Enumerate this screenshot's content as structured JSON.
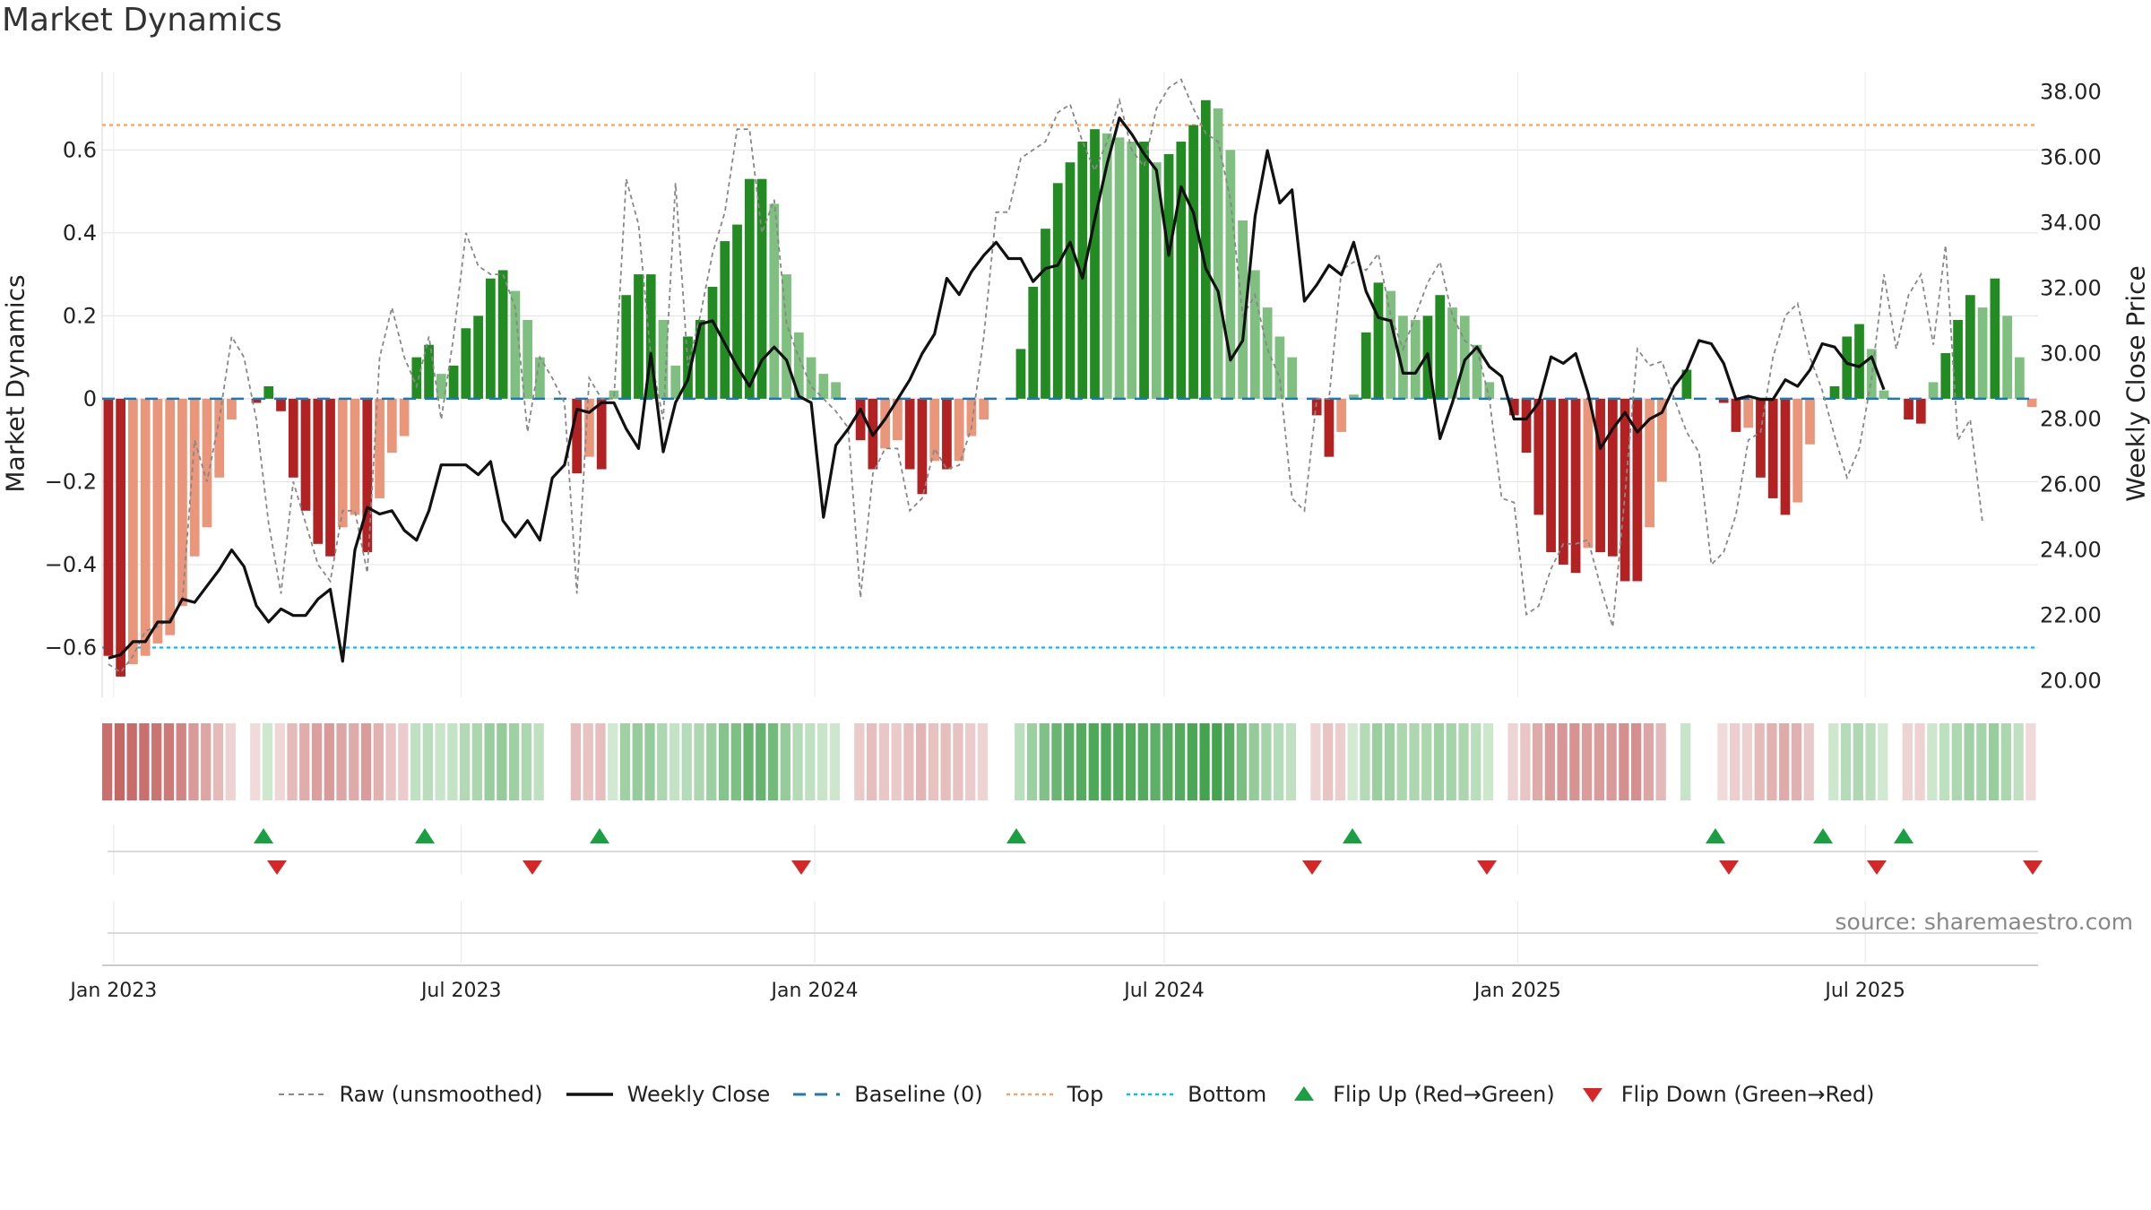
{
  "chart_data": {
    "type": "bar",
    "title": "Market Dynamics",
    "ylabel": "Market Dynamics",
    "ylabel_right": "Weekly Close Price",
    "ylim": [
      -0.72,
      0.78
    ],
    "ylim_right": [
      19.5,
      38.5
    ],
    "yticks": [
      0.6,
      0.4,
      0.2,
      0,
      -0.2,
      -0.4,
      -0.6
    ],
    "ytick_labels": [
      "0.6",
      "0.4",
      "0.2",
      "0",
      "−0.2",
      "−0.4",
      "−0.6"
    ],
    "yticks_right": [
      38,
      36,
      34,
      32,
      30,
      28,
      26,
      24,
      22,
      20
    ],
    "ytick_labels_right": [
      "38.00",
      "36.00",
      "34.00",
      "32.00",
      "30.00",
      "28.00",
      "26.00",
      "24.00",
      "22.00",
      "20.00"
    ],
    "x_start": "2022-12-26",
    "x_end": "2025-09-29",
    "xticks": [
      {
        "label": "Jan 2023",
        "date": "2023-01-01"
      },
      {
        "label": "Jul 2023",
        "date": "2023-07-01"
      },
      {
        "label": "Jan 2024",
        "date": "2024-01-01"
      },
      {
        "label": "Jul 2024",
        "date": "2024-07-01"
      },
      {
        "label": "Jan 2025",
        "date": "2025-01-01"
      },
      {
        "label": "Jul 2025",
        "date": "2025-07-01"
      }
    ],
    "top_line": 0.66,
    "bottom_line": -0.6,
    "baseline": 0,
    "grid": true,
    "legend_position": "bottom",
    "colors": {
      "strong_red": "#b22222",
      "light_red": "#e9967a",
      "strong_green": "#228b22",
      "light_green": "#7fbf7f",
      "raw": "#888888",
      "close": "#111111",
      "baseline": "#1f77b4",
      "top": "#f4a460",
      "bottom": "#00bfff",
      "flip_up": "#1aa043",
      "flip_down": "#d62728"
    },
    "series": [
      {
        "name": "Market Dynamics",
        "values": [
          -0.62,
          -0.67,
          -0.64,
          -0.62,
          -0.59,
          -0.57,
          -0.5,
          -0.38,
          -0.31,
          -0.19,
          -0.05,
          0,
          -0.01,
          0.03,
          -0.03,
          -0.19,
          -0.27,
          -0.35,
          -0.38,
          -0.31,
          -0.28,
          -0.37,
          -0.24,
          -0.13,
          -0.09,
          0.1,
          0.13,
          0.06,
          0.08,
          0.17,
          0.2,
          0.29,
          0.31,
          0.26,
          0.19,
          0.1,
          0,
          0,
          -0.18,
          -0.14,
          -0.17,
          0.02,
          0.25,
          0.3,
          0.3,
          0.19,
          0.08,
          0.15,
          0.19,
          0.27,
          0.38,
          0.42,
          0.53,
          0.53,
          0.47,
          0.3,
          0.16,
          0.1,
          0.06,
          0.04,
          0,
          -0.1,
          -0.17,
          -0.12,
          -0.1,
          -0.17,
          -0.23,
          -0.15,
          -0.17,
          -0.15,
          -0.09,
          -0.05,
          0,
          0,
          0.12,
          0.27,
          0.41,
          0.52,
          0.57,
          0.62,
          0.65,
          0.64,
          0.63,
          0.62,
          0.62,
          0.57,
          0.59,
          0.62,
          0.66,
          0.72,
          0.7,
          0.6,
          0.43,
          0.31,
          0.22,
          0.15,
          0.1,
          0,
          -0.04,
          -0.14,
          -0.08,
          0.01,
          0.16,
          0.28,
          0.26,
          0.2,
          0.19,
          0.2,
          0.25,
          0.22,
          0.2,
          0.13,
          0.04,
          0,
          -0.04,
          -0.13,
          -0.28,
          -0.37,
          -0.4,
          -0.42,
          -0.36,
          -0.37,
          -0.38,
          -0.44,
          -0.44,
          -0.31,
          -0.2,
          0,
          0.07,
          0,
          0,
          -0.01,
          -0.08,
          -0.07,
          -0.19,
          -0.24,
          -0.28,
          -0.25,
          -0.11,
          0,
          0.03,
          0.15,
          0.18,
          0.12,
          0.02,
          0,
          -0.05,
          -0.06,
          0.04,
          0.11,
          0.19,
          0.25,
          0.22,
          0.29,
          0.2,
          0.1,
          -0.02
        ]
      },
      {
        "name": "Raw (unsmoothed)",
        "values": [
          -0.64,
          -0.66,
          -0.62,
          -0.56,
          -0.55,
          -0.53,
          -0.49,
          -0.1,
          -0.2,
          -0.05,
          0.15,
          0.1,
          -0.05,
          -0.3,
          -0.47,
          -0.2,
          -0.3,
          -0.4,
          -0.44,
          -0.27,
          -0.27,
          -0.42,
          0.1,
          0.22,
          0.1,
          0.03,
          0.15,
          -0.05,
          0.15,
          0.4,
          0.32,
          0.3,
          0.3,
          0.22,
          -0.08,
          0.1,
          0.05,
          -0.01,
          -0.47,
          0.05,
          0.0,
          0.0,
          0.53,
          0.42,
          0.1,
          -0.05,
          0.52,
          0.08,
          0.2,
          0.35,
          0.45,
          0.65,
          0.65,
          0.4,
          0.48,
          0.18,
          0.1,
          0.03,
          0.0,
          -0.03,
          -0.07,
          -0.48,
          -0.18,
          -0.12,
          -0.12,
          -0.27,
          -0.24,
          -0.12,
          -0.17,
          -0.16,
          -0.07,
          0.15,
          0.45,
          0.45,
          0.58,
          0.6,
          0.62,
          0.69,
          0.71,
          0.62,
          0.55,
          0.62,
          0.72,
          0.6,
          0.56,
          0.7,
          0.75,
          0.77,
          0.7,
          0.64,
          0.62,
          0.48,
          0.2,
          0.25,
          0.12,
          0.05,
          -0.24,
          -0.27,
          0.0,
          0.0,
          0.31,
          0.33,
          0.31,
          0.35,
          0.2,
          0.12,
          0.2,
          0.28,
          0.33,
          0.2,
          0.14,
          0.12,
          0.0,
          -0.24,
          -0.25,
          -0.52,
          -0.5,
          -0.41,
          -0.35,
          -0.35,
          -0.34,
          -0.45,
          -0.55,
          -0.23,
          0.12,
          0.08,
          0.09,
          0.0,
          -0.08,
          -0.13,
          -0.4,
          -0.37,
          -0.28,
          -0.1,
          -0.08,
          0.1,
          0.2,
          0.23,
          0.1,
          0.02,
          -0.09,
          -0.19,
          -0.12,
          0.05,
          0.3,
          0.12,
          0.25,
          0.3,
          0.13,
          0.37,
          -0.1,
          -0.05,
          -0.3
        ]
      },
      {
        "name": "Weekly Close",
        "values": [
          20.7,
          20.8,
          21.2,
          21.2,
          21.8,
          21.8,
          22.5,
          22.4,
          22.9,
          23.4,
          24.0,
          23.5,
          22.3,
          21.8,
          22.2,
          22.0,
          22.0,
          22.5,
          22.8,
          20.6,
          24.0,
          25.3,
          25.1,
          25.2,
          24.6,
          24.3,
          25.2,
          26.6,
          26.6,
          26.6,
          26.3,
          26.7,
          24.9,
          24.4,
          24.9,
          24.3,
          26.2,
          26.6,
          28.3,
          28.2,
          28.5,
          28.5,
          27.7,
          27.1,
          30.0,
          27.0,
          28.5,
          29.2,
          30.9,
          31.0,
          30.3,
          29.6,
          29.0,
          29.8,
          30.2,
          29.8,
          28.7,
          28.5,
          25.0,
          27.2,
          27.7,
          28.3,
          27.5,
          28.0,
          28.6,
          29.2,
          30.0,
          30.6,
          32.3,
          31.8,
          32.5,
          33.0,
          33.4,
          32.9,
          32.9,
          32.2,
          32.6,
          32.7,
          33.4,
          32.3,
          34.1,
          35.8,
          37.2,
          36.7,
          36.1,
          35.6,
          33.0,
          35.1,
          34.3,
          32.6,
          31.9,
          29.8,
          30.4,
          34.2,
          36.2,
          34.6,
          35.0,
          31.6,
          32.1,
          32.7,
          32.4,
          33.4,
          31.9,
          31.1,
          31.0,
          29.4,
          29.4,
          30.0,
          27.4,
          28.5,
          29.8,
          30.2,
          29.6,
          29.3,
          28.0,
          28.0,
          28.5,
          29.9,
          29.7,
          30.0,
          28.8,
          27.1,
          27.7,
          28.2,
          27.6,
          28.0,
          28.2,
          29.0,
          29.5,
          30.4,
          30.3,
          29.7,
          28.6,
          28.7,
          28.6,
          28.6,
          29.2,
          29.0,
          29.5,
          30.3,
          30.2,
          29.7,
          29.6,
          29.9,
          28.9
        ]
      }
    ],
    "flips_up": [
      "2023-03-20",
      "2023-06-12",
      "2023-09-11",
      "2024-04-15",
      "2024-10-07",
      "2025-04-14",
      "2025-06-09",
      "2025-07-21"
    ],
    "flips_down": [
      "2023-03-27",
      "2023-08-07",
      "2023-12-25",
      "2024-09-16",
      "2024-12-16",
      "2025-04-21",
      "2025-07-07",
      "2025-09-29"
    ]
  },
  "legend": [
    {
      "key": "raw",
      "label": "Raw (unsmoothed)"
    },
    {
      "key": "close",
      "label": "Weekly Close"
    },
    {
      "key": "baseline",
      "label": "Baseline (0)"
    },
    {
      "key": "top",
      "label": "Top"
    },
    {
      "key": "bottom",
      "label": "Bottom"
    },
    {
      "key": "flip_up",
      "label": "Flip Up (Red→Green)"
    },
    {
      "key": "flip_down",
      "label": "Flip Down (Green→Red)"
    }
  ],
  "source_text": "source: sharemaestro.com"
}
